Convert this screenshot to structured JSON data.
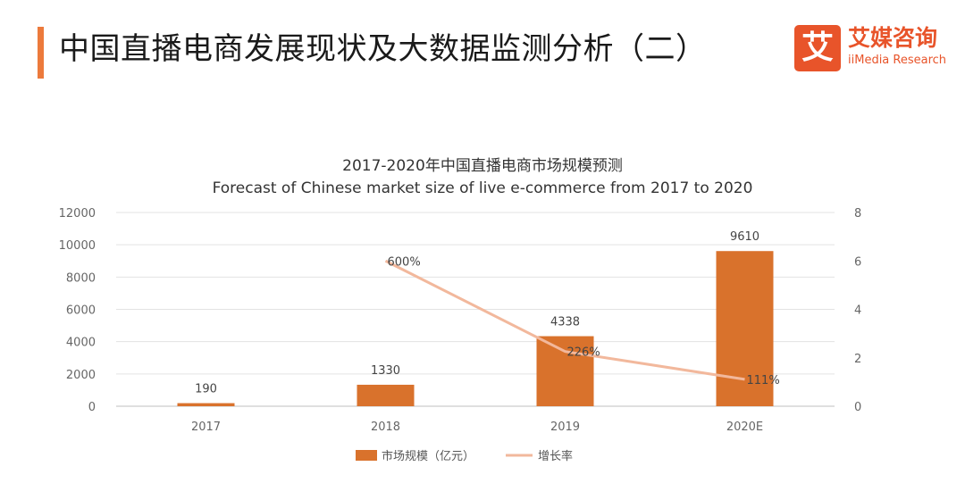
{
  "header": {
    "title": "中国直播电商发展现状及大数据监测分析（二）",
    "logo_mark": "艾",
    "logo_cn": "艾媒咨询",
    "logo_en": "iiMedia Research"
  },
  "colors": {
    "accent": "#ec7a3c",
    "bar": "#d9722c",
    "line": "#f2b89c",
    "brand": "#e8542a"
  },
  "chart_data": {
    "type": "bar+line",
    "title": "2017-2020年中国直播电商市场规模预测",
    "subtitle": "Forecast of Chinese market size of live e-commerce from 2017 to 2020",
    "categories": [
      "2017",
      "2018",
      "2019",
      "2020E"
    ],
    "series": [
      {
        "name": "市场规模（亿元）",
        "type": "bar",
        "axis": "left",
        "values": [
          190,
          1330,
          4338,
          9610
        ],
        "labels": [
          "190",
          "1330",
          "4338",
          "9610"
        ]
      },
      {
        "name": "增长率",
        "type": "line",
        "axis": "right",
        "values": [
          null,
          6.0,
          2.26,
          1.11
        ],
        "labels": [
          "",
          "600%",
          "226%",
          "111%"
        ]
      }
    ],
    "y_left": {
      "min": 0,
      "max": 12000,
      "ticks": [
        "0",
        "2000",
        "4000",
        "6000",
        "8000",
        "10000",
        "12000"
      ]
    },
    "y_right": {
      "min": 0,
      "max": 8,
      "ticks": [
        "0",
        "2",
        "4",
        "6",
        "8"
      ]
    },
    "grid": true,
    "legend_position": "bottom"
  }
}
